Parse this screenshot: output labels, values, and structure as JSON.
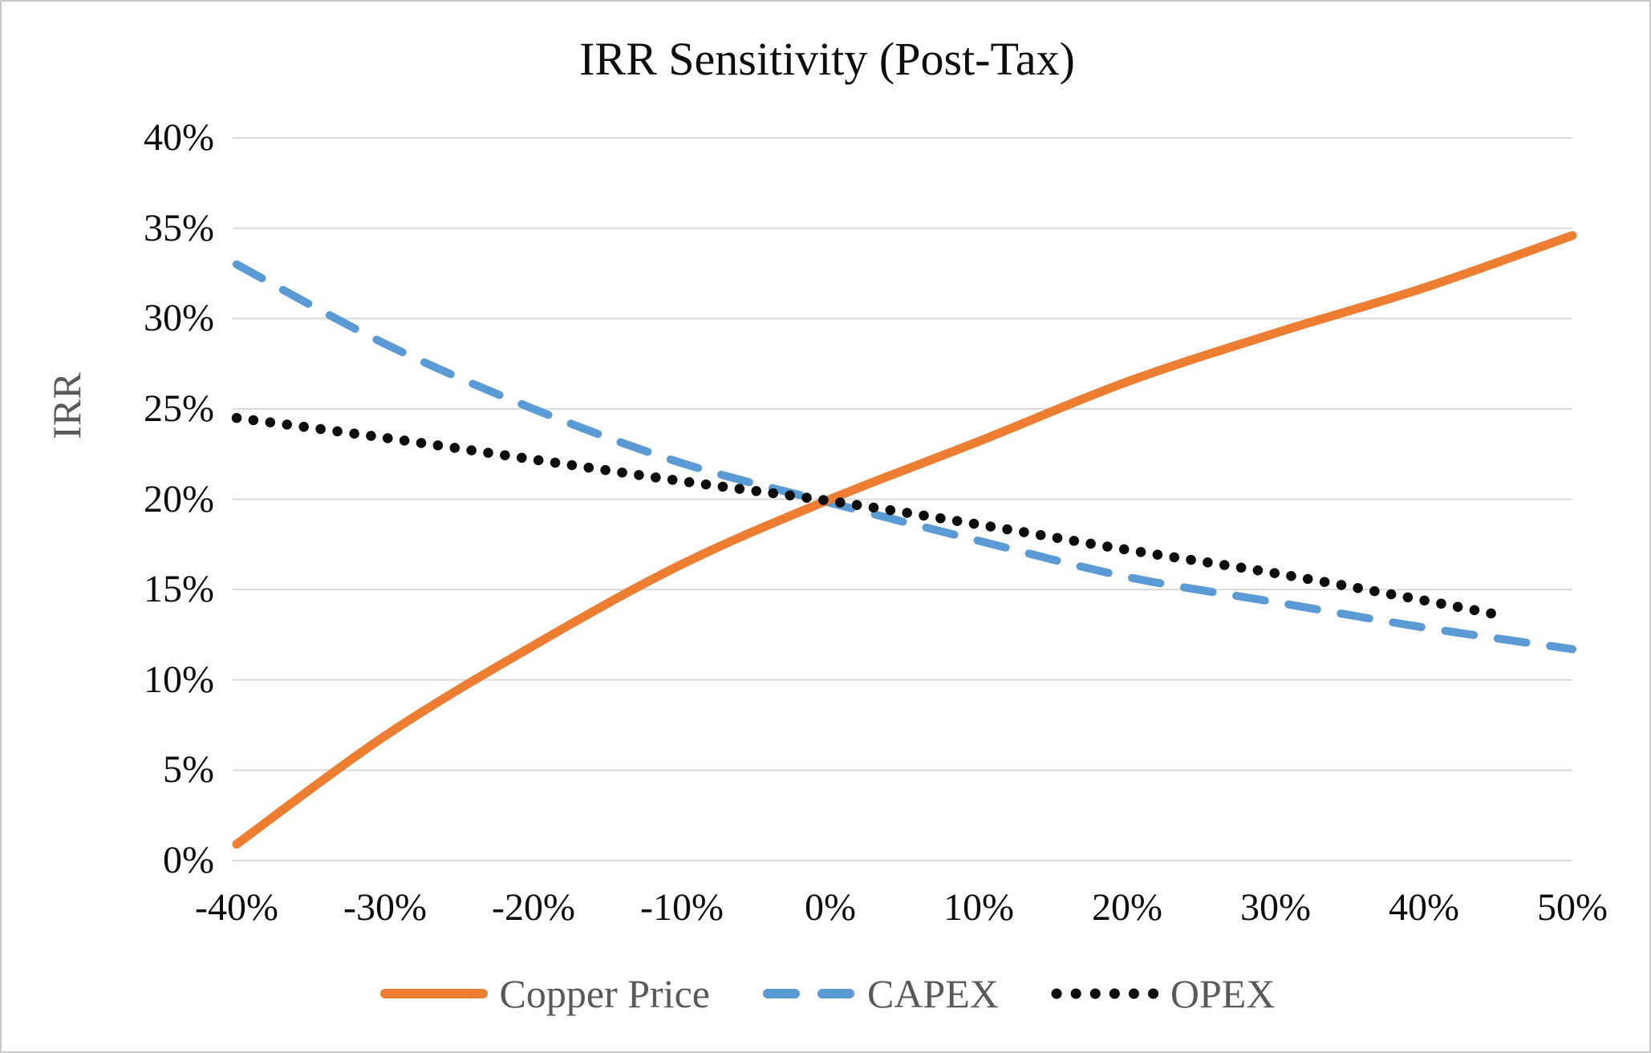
{
  "chart_data": {
    "type": "line",
    "title": "IRR Sensitivity (Post-Tax)",
    "xlabel": "",
    "ylabel": "IRR",
    "xlim": [
      -40,
      50
    ],
    "ylim": [
      0,
      40
    ],
    "grid": "horizontal",
    "gridline_color": "#d9d9d9",
    "legend_position": "bottom",
    "x_ticks": [
      {
        "value": -40,
        "label": "-40%"
      },
      {
        "value": -30,
        "label": "-30%"
      },
      {
        "value": -20,
        "label": "-20%"
      },
      {
        "value": -10,
        "label": "-10%"
      },
      {
        "value": 0,
        "label": "0%"
      },
      {
        "value": 10,
        "label": "10%"
      },
      {
        "value": 20,
        "label": "20%"
      },
      {
        "value": 30,
        "label": "30%"
      },
      {
        "value": 40,
        "label": "40%"
      },
      {
        "value": 50,
        "label": "50%"
      }
    ],
    "y_ticks": [
      {
        "value": 40,
        "label": "40%"
      },
      {
        "value": 35,
        "label": "35%"
      },
      {
        "value": 30,
        "label": "30%"
      },
      {
        "value": 25,
        "label": "25%"
      },
      {
        "value": 20,
        "label": "20%"
      },
      {
        "value": 15,
        "label": "15%"
      },
      {
        "value": 10,
        "label": "10%"
      },
      {
        "value": 5,
        "label": "5%"
      },
      {
        "value": 0,
        "label": "0%"
      }
    ],
    "series": [
      {
        "name": "CAPEX",
        "style": "dashed",
        "color": "#5b9bd5",
        "x": [
          -40,
          -30,
          -20,
          -10,
          0,
          10,
          20,
          30,
          40,
          50
        ],
        "values": [
          33.0,
          28.6,
          25.0,
          22.0,
          19.8,
          17.7,
          15.7,
          14.3,
          12.9,
          11.7
        ]
      },
      {
        "name": "Copper Price",
        "style": "solid",
        "color": "#ed7d31",
        "x": [
          -40,
          -30,
          -20,
          -10,
          0,
          10,
          20,
          30,
          40,
          50
        ],
        "values": [
          0.9,
          6.9,
          11.9,
          16.4,
          20.0,
          23.2,
          26.5,
          29.2,
          31.7,
          34.6
        ]
      },
      {
        "name": "OPEX",
        "style": "dotted",
        "color": "#0d0d0d",
        "x": [
          -40,
          -30,
          -20,
          -10,
          0,
          10,
          20,
          30,
          40,
          45
        ],
        "values": [
          24.5,
          23.4,
          22.2,
          21.0,
          19.9,
          18.6,
          17.2,
          15.9,
          14.4,
          13.6
        ]
      }
    ]
  }
}
